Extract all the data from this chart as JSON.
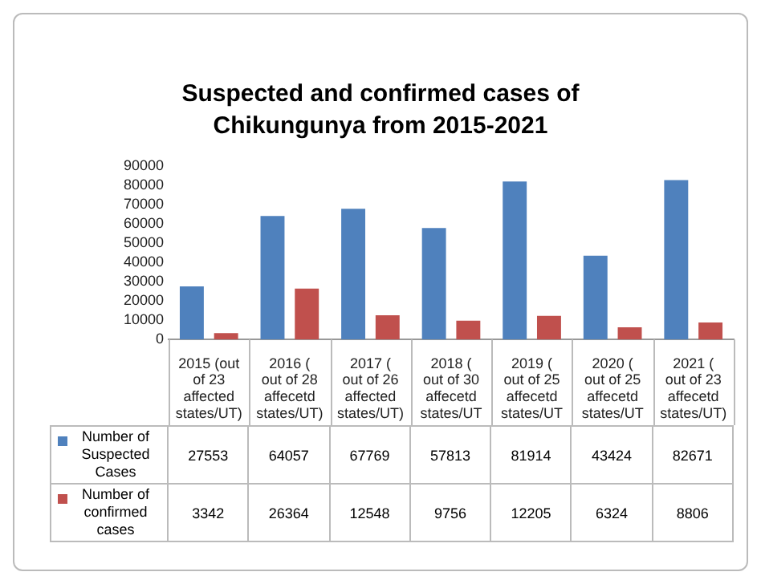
{
  "chart_data": {
    "type": "bar",
    "title": "Suspected and confirmed cases of Chikungunya from 2015-2021",
    "categories": [
      "2015 (out of 23 affected states/UT)",
      "2016 ( out of 28 affecetd states/UT)",
      "2017 ( out of 26 affected states/UT)",
      "2018 ( out of 30 affecetd states/UT",
      "2019 ( out of 25 affecetd states/UT",
      "2020 ( out of 25 affecetd states/UT",
      "2021 ( out of 23 affecetd states/UT)"
    ],
    "series": [
      {
        "name": "Number of Suspected Cases",
        "color": "#4f81bd",
        "values": [
          27553,
          64057,
          67769,
          57813,
          81914,
          43424,
          82671
        ]
      },
      {
        "name": "Number of confirmed cases",
        "color": "#c0504d",
        "values": [
          3342,
          26364,
          12548,
          9756,
          12205,
          6324,
          8806
        ]
      }
    ],
    "ylim": [
      0,
      90000
    ],
    "yticks": [
      0,
      10000,
      20000,
      30000,
      40000,
      50000,
      60000,
      70000,
      80000,
      90000
    ],
    "grid": false,
    "legend": "bottom",
    "data_labels": true
  }
}
